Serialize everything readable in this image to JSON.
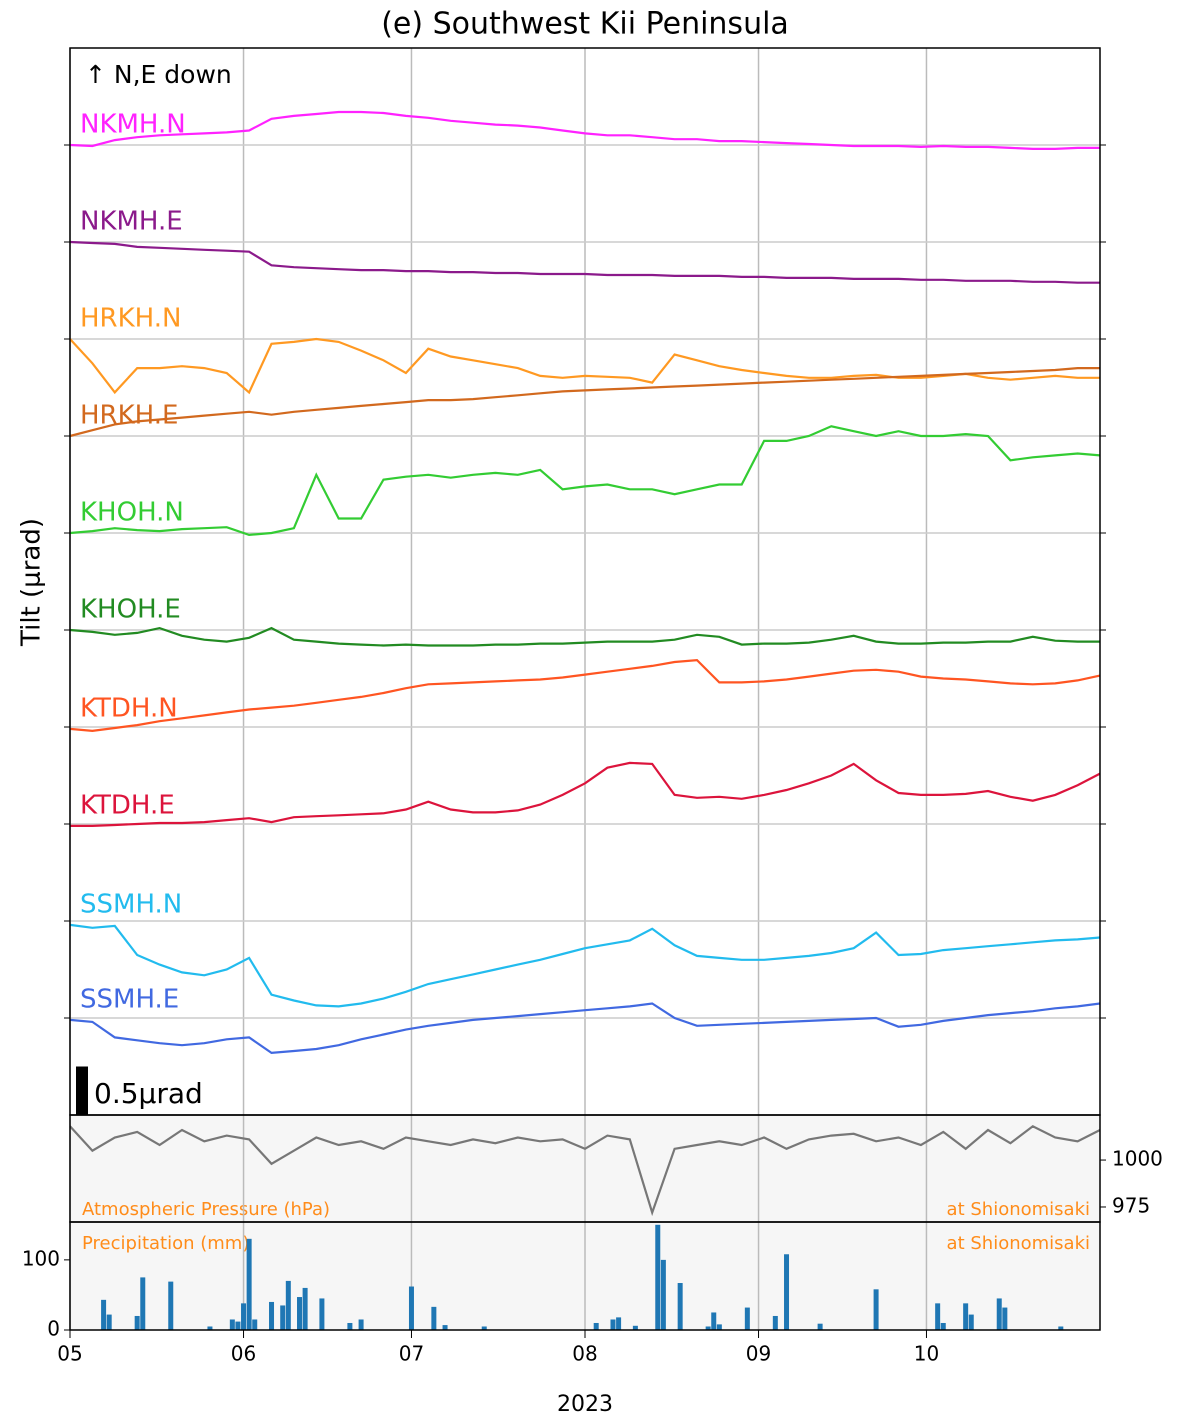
{
  "chart_data": [
    {
      "type": "line",
      "title": "(e) Southwest Kii Peninsula",
      "ylabel": "Tilt (μrad)",
      "annotation": "↑ N,E down",
      "scale_bar": {
        "value": 0.5,
        "label": "0.5μrad"
      },
      "x": [
        0,
        4,
        8,
        12,
        16,
        20,
        24,
        28,
        32,
        36,
        40,
        44,
        48,
        52,
        56,
        60,
        64,
        68,
        72,
        76,
        80,
        84,
        88,
        92,
        96,
        100,
        104,
        108,
        112,
        116,
        120,
        124,
        128,
        132,
        136,
        140,
        144,
        148,
        152,
        156,
        160,
        164,
        168,
        172,
        176,
        180,
        184
      ],
      "xlim": [
        0,
        184
      ],
      "ylim": [
        0,
        11
      ],
      "yticks": [
        1,
        2,
        3,
        4,
        5,
        6,
        7,
        8,
        9,
        10
      ],
      "grid": true,
      "series": [
        {
          "name": "NKMH.N",
          "color": "#ff22ff",
          "values": [
            10.0,
            9.99,
            10.05,
            10.08,
            10.1,
            10.11,
            10.12,
            10.13,
            10.15,
            10.27,
            10.3,
            10.32,
            10.34,
            10.34,
            10.33,
            10.3,
            10.28,
            10.25,
            10.23,
            10.21,
            10.2,
            10.18,
            10.15,
            10.12,
            10.1,
            10.1,
            10.08,
            10.06,
            10.06,
            10.04,
            10.04,
            10.03,
            10.02,
            10.01,
            10.0,
            9.99,
            9.99,
            9.99,
            9.98,
            9.99,
            9.98,
            9.98,
            9.97,
            9.96,
            9.96,
            9.97,
            9.97
          ]
        },
        {
          "name": "NKMH.E",
          "color": "#8b1a8b",
          "values": [
            9.0,
            8.99,
            8.98,
            8.95,
            8.94,
            8.93,
            8.92,
            8.91,
            8.9,
            8.76,
            8.74,
            8.73,
            8.72,
            8.71,
            8.71,
            8.7,
            8.7,
            8.69,
            8.69,
            8.68,
            8.68,
            8.67,
            8.67,
            8.67,
            8.66,
            8.66,
            8.66,
            8.65,
            8.65,
            8.65,
            8.64,
            8.64,
            8.63,
            8.63,
            8.63,
            8.62,
            8.62,
            8.62,
            8.61,
            8.61,
            8.6,
            8.6,
            8.6,
            8.59,
            8.59,
            8.58,
            8.58
          ]
        },
        {
          "name": "HRKH.N",
          "color": "#ff9922",
          "values": [
            8.0,
            7.75,
            7.45,
            7.7,
            7.7,
            7.72,
            7.7,
            7.65,
            7.45,
            7.95,
            7.97,
            8.0,
            7.97,
            7.88,
            7.78,
            7.65,
            7.9,
            7.82,
            7.78,
            7.74,
            7.7,
            7.62,
            7.6,
            7.62,
            7.61,
            7.6,
            7.55,
            7.84,
            7.78,
            7.72,
            7.68,
            7.65,
            7.62,
            7.6,
            7.6,
            7.62,
            7.63,
            7.6,
            7.6,
            7.62,
            7.64,
            7.6,
            7.58,
            7.6,
            7.62,
            7.6,
            7.6
          ]
        },
        {
          "name": "HRKH.E",
          "color": "#d2691e",
          "values": [
            7.0,
            7.06,
            7.12,
            7.15,
            7.17,
            7.19,
            7.21,
            7.23,
            7.25,
            7.22,
            7.25,
            7.27,
            7.29,
            7.31,
            7.33,
            7.35,
            7.37,
            7.37,
            7.38,
            7.4,
            7.42,
            7.44,
            7.46,
            7.47,
            7.48,
            7.49,
            7.5,
            7.51,
            7.52,
            7.53,
            7.54,
            7.55,
            7.56,
            7.57,
            7.58,
            7.59,
            7.6,
            7.61,
            7.62,
            7.63,
            7.64,
            7.65,
            7.66,
            7.67,
            7.68,
            7.7,
            7.7
          ]
        },
        {
          "name": "KHOH.N",
          "color": "#33cc33",
          "values": [
            6.0,
            6.02,
            6.05,
            6.03,
            6.02,
            6.04,
            6.05,
            6.06,
            5.98,
            6.0,
            6.05,
            6.6,
            6.15,
            6.15,
            6.55,
            6.58,
            6.6,
            6.57,
            6.6,
            6.62,
            6.6,
            6.65,
            6.45,
            6.48,
            6.5,
            6.45,
            6.45,
            6.4,
            6.45,
            6.5,
            6.5,
            6.95,
            6.95,
            7.0,
            7.1,
            7.05,
            7.0,
            7.05,
            7.0,
            7.0,
            7.02,
            7.0,
            6.75,
            6.78,
            6.8,
            6.82,
            6.8
          ]
        },
        {
          "name": "KHOH.E",
          "color": "#228b22",
          "values": [
            5.0,
            4.98,
            4.95,
            4.97,
            5.02,
            4.94,
            4.9,
            4.88,
            4.92,
            5.02,
            4.9,
            4.88,
            4.86,
            4.85,
            4.84,
            4.85,
            4.84,
            4.84,
            4.84,
            4.85,
            4.85,
            4.86,
            4.86,
            4.87,
            4.88,
            4.88,
            4.88,
            4.9,
            4.95,
            4.93,
            4.85,
            4.86,
            4.86,
            4.87,
            4.9,
            4.94,
            4.88,
            4.86,
            4.86,
            4.87,
            4.87,
            4.88,
            4.88,
            4.93,
            4.89,
            4.88,
            4.88
          ]
        },
        {
          "name": "KTDH.N",
          "color": "#ff5522",
          "values": [
            3.98,
            3.96,
            3.99,
            4.02,
            4.06,
            4.09,
            4.12,
            4.15,
            4.18,
            4.2,
            4.22,
            4.25,
            4.28,
            4.31,
            4.35,
            4.4,
            4.44,
            4.45,
            4.46,
            4.47,
            4.48,
            4.49,
            4.51,
            4.54,
            4.57,
            4.6,
            4.63,
            4.67,
            4.69,
            4.46,
            4.46,
            4.47,
            4.49,
            4.52,
            4.55,
            4.58,
            4.59,
            4.57,
            4.52,
            4.5,
            4.49,
            4.47,
            4.45,
            4.44,
            4.45,
            4.48,
            4.53
          ]
        },
        {
          "name": "KTDH.E",
          "color": "#dc143c",
          "values": [
            2.98,
            2.98,
            2.99,
            3.0,
            3.01,
            3.01,
            3.02,
            3.04,
            3.06,
            3.02,
            3.07,
            3.08,
            3.09,
            3.1,
            3.11,
            3.15,
            3.23,
            3.15,
            3.12,
            3.12,
            3.14,
            3.2,
            3.3,
            3.42,
            3.58,
            3.63,
            3.62,
            3.3,
            3.27,
            3.28,
            3.26,
            3.3,
            3.35,
            3.42,
            3.5,
            3.62,
            3.45,
            3.32,
            3.3,
            3.3,
            3.31,
            3.34,
            3.28,
            3.24,
            3.3,
            3.4,
            3.52
          ]
        },
        {
          "name": "SSMH.N",
          "color": "#22bbee",
          "values": [
            1.96,
            1.93,
            1.95,
            1.65,
            1.55,
            1.47,
            1.44,
            1.5,
            1.62,
            1.24,
            1.18,
            1.13,
            1.12,
            1.15,
            1.2,
            1.27,
            1.35,
            1.4,
            1.45,
            1.5,
            1.55,
            1.6,
            1.66,
            1.72,
            1.76,
            1.8,
            1.92,
            1.75,
            1.64,
            1.62,
            1.6,
            1.6,
            1.62,
            1.64,
            1.67,
            1.72,
            1.88,
            1.65,
            1.66,
            1.7,
            1.72,
            1.74,
            1.76,
            1.78,
            1.8,
            1.81,
            1.83
          ]
        },
        {
          "name": "SSMH.E",
          "color": "#4169e1",
          "values": [
            0.98,
            0.96,
            0.8,
            0.77,
            0.74,
            0.72,
            0.74,
            0.78,
            0.8,
            0.64,
            0.66,
            0.68,
            0.72,
            0.78,
            0.83,
            0.88,
            0.92,
            0.95,
            0.98,
            1.0,
            1.02,
            1.04,
            1.06,
            1.08,
            1.1,
            1.12,
            1.15,
            1.0,
            0.92,
            0.93,
            0.94,
            0.95,
            0.96,
            0.97,
            0.98,
            0.99,
            1.0,
            0.91,
            0.93,
            0.97,
            1.0,
            1.03,
            1.05,
            1.07,
            1.1,
            1.12,
            1.15
          ]
        }
      ]
    },
    {
      "type": "line",
      "note": "at Shionomisaki",
      "x": [
        0,
        4,
        8,
        12,
        16,
        20,
        24,
        28,
        32,
        36,
        40,
        44,
        48,
        52,
        56,
        60,
        64,
        68,
        72,
        76,
        80,
        84,
        88,
        92,
        96,
        100,
        104,
        108,
        112,
        116,
        120,
        124,
        128,
        132,
        136,
        140,
        144,
        148,
        152,
        156,
        160,
        164,
        168,
        172,
        176,
        180,
        184
      ],
      "xlim": [
        0,
        184
      ],
      "ylim": [
        967,
        1024
      ],
      "yticks": [
        975,
        1000
      ],
      "series": [
        {
          "name": "Atmospheric Pressure (hPa)",
          "color": "#777777",
          "values": [
            1018,
            1005,
            1012,
            1015,
            1008,
            1016,
            1010,
            1013,
            1011,
            998,
            1005,
            1012,
            1008,
            1010,
            1006,
            1012,
            1010,
            1008,
            1011,
            1009,
            1012,
            1010,
            1011,
            1006,
            1013,
            1011,
            972,
            1006,
            1008,
            1010,
            1008,
            1012,
            1006,
            1011,
            1013,
            1014,
            1010,
            1012,
            1008,
            1015,
            1006,
            1016,
            1009,
            1018,
            1012,
            1010,
            1016
          ]
        }
      ]
    },
    {
      "type": "bar",
      "note": "at Shionomisaki",
      "xlabel": "2023",
      "x": [
        6,
        7,
        12,
        13,
        18,
        25,
        29,
        30,
        31,
        32,
        33,
        36,
        38,
        39,
        41,
        42,
        45,
        50,
        52,
        61,
        65,
        67,
        74,
        94,
        97,
        98,
        101,
        105,
        106,
        109,
        114,
        115,
        116,
        121,
        126,
        128,
        134,
        144,
        155,
        156,
        160,
        161,
        166,
        167,
        177
      ],
      "xlim": [
        0,
        184
      ],
      "ylim": [
        0,
        154
      ],
      "yticks": [
        0,
        100
      ],
      "xticks": [
        {
          "value": 0,
          "label": "05"
        },
        {
          "value": 31,
          "label": "06"
        },
        {
          "value": 61,
          "label": "07"
        },
        {
          "value": 92,
          "label": "08"
        },
        {
          "value": 123,
          "label": "09"
        },
        {
          "value": 153,
          "label": "10"
        }
      ],
      "series": [
        {
          "name": "Precipitation (mm)",
          "color": "#1f77b4",
          "values": [
            43,
            22,
            20,
            75,
            69,
            5,
            15,
            12,
            38,
            130,
            15,
            40,
            35,
            70,
            47,
            60,
            45,
            10,
            15,
            62,
            33,
            7,
            5,
            10,
            15,
            18,
            6,
            150,
            100,
            67,
            5,
            25,
            8,
            32,
            20,
            108,
            9,
            58,
            38,
            10,
            38,
            22,
            45,
            32,
            5
          ]
        }
      ]
    }
  ]
}
